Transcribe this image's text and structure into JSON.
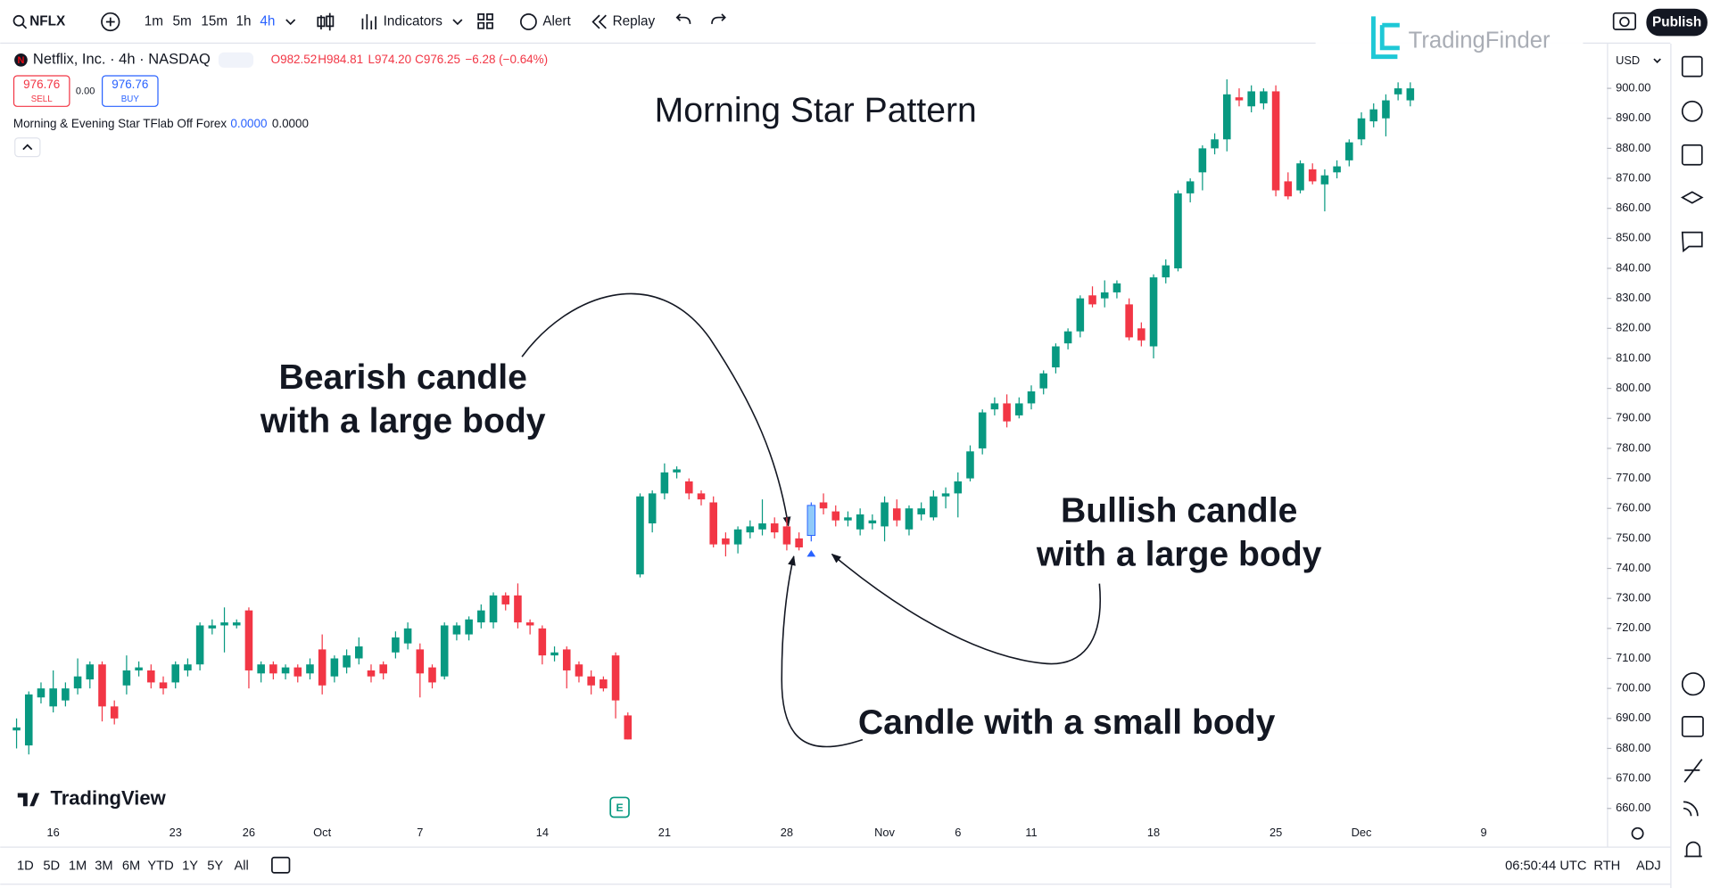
{
  "toolbar": {
    "symbol": "NFLX",
    "intervals": [
      "1m",
      "5m",
      "15m",
      "1h",
      "4h"
    ],
    "indicators": "Indicators",
    "alert": "Alert",
    "replay": "Replay",
    "publish": "Publish"
  },
  "watermark": "TradingFinder",
  "chart_data": {
    "type": "candlestick",
    "title": "Morning Star Pattern",
    "symbol_line": "Netflix, Inc. · 4h · NASDAQ",
    "ohlc_line": [
      "O982.52",
      "H984.81",
      "L974.20",
      "C976.25",
      "−6.28 (−0.64%)"
    ],
    "sell": {
      "price": "976.76",
      "label": "SELL"
    },
    "spread": "0.00",
    "buy": {
      "price": "976.76",
      "label": "BUY"
    },
    "indicator": {
      "name": "Morning & Evening Star TFlab Off Forex",
      "values": [
        "0.0000",
        "0.0000"
      ]
    },
    "annotations": [
      {
        "lines": [
          "Bearish candle",
          "with a large body"
        ]
      },
      {
        "lines": [
          "Bullish candle",
          "with a large body"
        ]
      },
      {
        "lines": [
          "Candle with a small body"
        ]
      }
    ],
    "categories": [
      null,
      null,
      null,
      "16",
      null,
      null,
      null,
      null,
      null,
      null,
      null,
      null,
      null,
      "23",
      null,
      null,
      null,
      null,
      null,
      "26",
      null,
      null,
      null,
      null,
      null,
      "Oct",
      null,
      null,
      null,
      null,
      null,
      null,
      null,
      "7",
      null,
      null,
      null,
      null,
      null,
      null,
      null,
      null,
      null,
      "14",
      null,
      null,
      null,
      null,
      null,
      null,
      null,
      null,
      null,
      "21",
      null,
      null,
      null,
      null,
      null,
      null,
      null,
      null,
      null,
      "28",
      null,
      null,
      null,
      null,
      null,
      null,
      null,
      "Nov",
      null,
      null,
      null,
      null,
      null,
      "6",
      null,
      null,
      null,
      null,
      null,
      "11",
      null,
      null,
      null,
      null,
      null,
      null,
      null,
      null,
      null,
      "18",
      null,
      null,
      null,
      null,
      null,
      null,
      null,
      null,
      null,
      "25",
      null,
      null,
      null,
      null,
      null,
      null,
      "Dec",
      null,
      null,
      null,
      null,
      null,
      null,
      null,
      null,
      null,
      "9",
      null,
      null,
      null,
      null,
      null,
      null,
      null,
      null,
      null
    ],
    "series": [
      {
        "up_color": "#089981",
        "down_color": "#f23645",
        "open": [
          686,
          681,
          697,
          694,
          696,
          700,
          703,
          708,
          694,
          701,
          706,
          706,
          702,
          702,
          706,
          708,
          720,
          721,
          721,
          726,
          705,
          708,
          705,
          707,
          705,
          713,
          704,
          707,
          710,
          706,
          708,
          712,
          715,
          713,
          707,
          704,
          718,
          718,
          722,
          722,
          731,
          731,
          722,
          720,
          711,
          713,
          708,
          704,
          703,
          711,
          691,
          738,
          755,
          765,
          772,
          769,
          765,
          762,
          750,
          748,
          752,
          753,
          755,
          754,
          750,
          751,
          762,
          759,
          756,
          753,
          755,
          754,
          760,
          753,
          758,
          757,
          764,
          765,
          770,
          780,
          793,
          795,
          791,
          795,
          800,
          807,
          815,
          819,
          831,
          830,
          832,
          828,
          820,
          814,
          837,
          840,
          865,
          872,
          880,
          883,
          897,
          894,
          895,
          899,
          869,
          866,
          873,
          868,
          872,
          876,
          883,
          889,
          890,
          898,
          896,
          null,
          null,
          null,
          null,
          null,
          null,
          null,
          null,
          null,
          null,
          null,
          null,
          null,
          null,
          null
        ],
        "high": [
          690,
          699,
          702,
          706,
          702,
          710,
          709,
          709,
          696,
          711,
          709,
          708,
          704,
          709,
          710,
          722,
          723,
          727,
          723,
          727,
          709,
          709,
          708,
          708,
          710,
          718,
          711,
          713,
          717,
          708,
          709,
          719,
          722,
          715,
          708,
          722,
          722,
          724,
          728,
          732,
          732,
          735,
          723,
          721,
          714,
          714,
          709,
          706,
          704,
          712,
          692,
          765,
          766,
          775,
          774,
          770,
          766,
          764,
          752,
          754,
          756,
          763,
          757,
          757,
          752,
          762,
          765,
          761,
          759,
          760,
          758,
          764,
          763,
          761,
          762,
          766,
          767,
          772,
          781,
          793,
          797,
          798,
          797,
          801,
          806,
          815,
          820,
          831,
          834,
          836,
          836,
          830,
          822,
          838,
          843,
          866,
          870,
          881,
          885,
          903,
          900,
          901,
          900,
          901,
          872,
          876,
          875,
          873,
          876,
          883,
          892,
          895,
          898,
          902,
          902,
          null,
          null,
          null,
          null,
          null,
          null,
          null,
          null,
          null,
          null,
          null,
          null,
          null,
          null,
          null
        ],
        "low": [
          680,
          678,
          695,
          692,
          694,
          698,
          700,
          689,
          688,
          698,
          704,
          700,
          698,
          700,
          704,
          706,
          718,
          712,
          720,
          700,
          702,
          703,
          703,
          702,
          703,
          698,
          702,
          705,
          708,
          702,
          703,
          710,
          713,
          697,
          700,
          703,
          716,
          716,
          720,
          720,
          726,
          720,
          718,
          708,
          709,
          700,
          702,
          698,
          699,
          690,
          683,
          737,
          752,
          763,
          770,
          763,
          761,
          747,
          744,
          745,
          750,
          751,
          750,
          746,
          746,
          749,
          758,
          754,
          754,
          751,
          753,
          749,
          754,
          751,
          756,
          756,
          760,
          757,
          769,
          778,
          791,
          787,
          790,
          793,
          798,
          805,
          813,
          817,
          827,
          827,
          830,
          816,
          814,
          810,
          835,
          839,
          862,
          866,
          878,
          879,
          894,
          892,
          893,
          864,
          863,
          865,
          868,
          859,
          870,
          874,
          881,
          887,
          884,
          896,
          894,
          null,
          null,
          null,
          null,
          null,
          null,
          null,
          null,
          null,
          null,
          null,
          null,
          null,
          null,
          null
        ],
        "close": [
          687,
          698,
          700,
          700,
          700,
          704,
          708,
          694,
          690,
          706,
          707,
          702,
          700,
          708,
          708,
          721,
          721,
          722,
          722,
          706,
          708,
          705,
          707,
          704,
          708,
          701,
          710,
          711,
          714,
          704,
          705,
          717,
          720,
          705,
          702,
          721,
          721,
          723,
          726,
          731,
          728,
          722,
          721,
          711,
          712,
          706,
          704,
          701,
          700,
          696,
          683,
          764,
          765,
          772,
          773,
          765,
          763,
          748,
          748,
          753,
          754,
          755,
          752,
          748,
          747,
          761,
          760,
          756,
          757,
          758,
          756,
          762,
          756,
          760,
          760,
          764,
          765,
          769,
          779,
          792,
          795,
          789,
          795,
          799,
          805,
          814,
          819,
          830,
          828,
          832,
          835,
          817,
          816,
          837,
          841,
          865,
          869,
          880,
          883,
          898,
          896,
          899,
          899,
          866,
          864,
          875,
          869,
          871,
          874,
          882,
          890,
          893,
          896,
          900,
          900,
          null,
          null,
          null,
          null,
          null,
          null,
          null,
          null,
          null,
          null,
          null,
          null,
          null,
          null,
          null
        ]
      }
    ],
    "highlight": {
      "index": 65,
      "color": "#90caf9"
    },
    "currency": "USD",
    "ylim": [
      647.3,
      914.9
    ],
    "yticks": [
      {
        "value": 660,
        "label": "660.00"
      },
      {
        "value": 670,
        "label": "670.00"
      },
      {
        "value": 680,
        "label": "680.00"
      },
      {
        "value": 690,
        "label": "690.00"
      },
      {
        "value": 700,
        "label": "700.00"
      },
      {
        "value": 710,
        "label": "710.00"
      },
      {
        "value": 720,
        "label": "720.00"
      },
      {
        "value": 730,
        "label": "730.00"
      },
      {
        "value": 740,
        "label": "740.00"
      },
      {
        "value": 750,
        "label": "750.00"
      },
      {
        "value": 760,
        "label": "760.00"
      },
      {
        "value": 770,
        "label": "770.00"
      },
      {
        "value": 780,
        "label": "780.00"
      },
      {
        "value": 790,
        "label": "790.00"
      },
      {
        "value": 800,
        "label": "800.00"
      },
      {
        "value": 810,
        "label": "810.00"
      },
      {
        "value": 820,
        "label": "820.00"
      },
      {
        "value": 830,
        "label": "830.00"
      },
      {
        "value": 840,
        "label": "840.00"
      },
      {
        "value": 850,
        "label": "850.00"
      },
      {
        "value": 860,
        "label": "860.00"
      },
      {
        "value": 870,
        "label": "870.00"
      },
      {
        "value": 880,
        "label": "880.00"
      },
      {
        "value": 890,
        "label": "890.00"
      },
      {
        "value": 900,
        "label": "900.00"
      }
    ],
    "logo": "TradingView"
  },
  "footer": {
    "ranges": [
      "1D",
      "5D",
      "1M",
      "3M",
      "6M",
      "YTD",
      "1Y",
      "5Y",
      "All"
    ],
    "time": "06:50:44 UTC",
    "rth": "RTH",
    "adj": "ADJ"
  }
}
